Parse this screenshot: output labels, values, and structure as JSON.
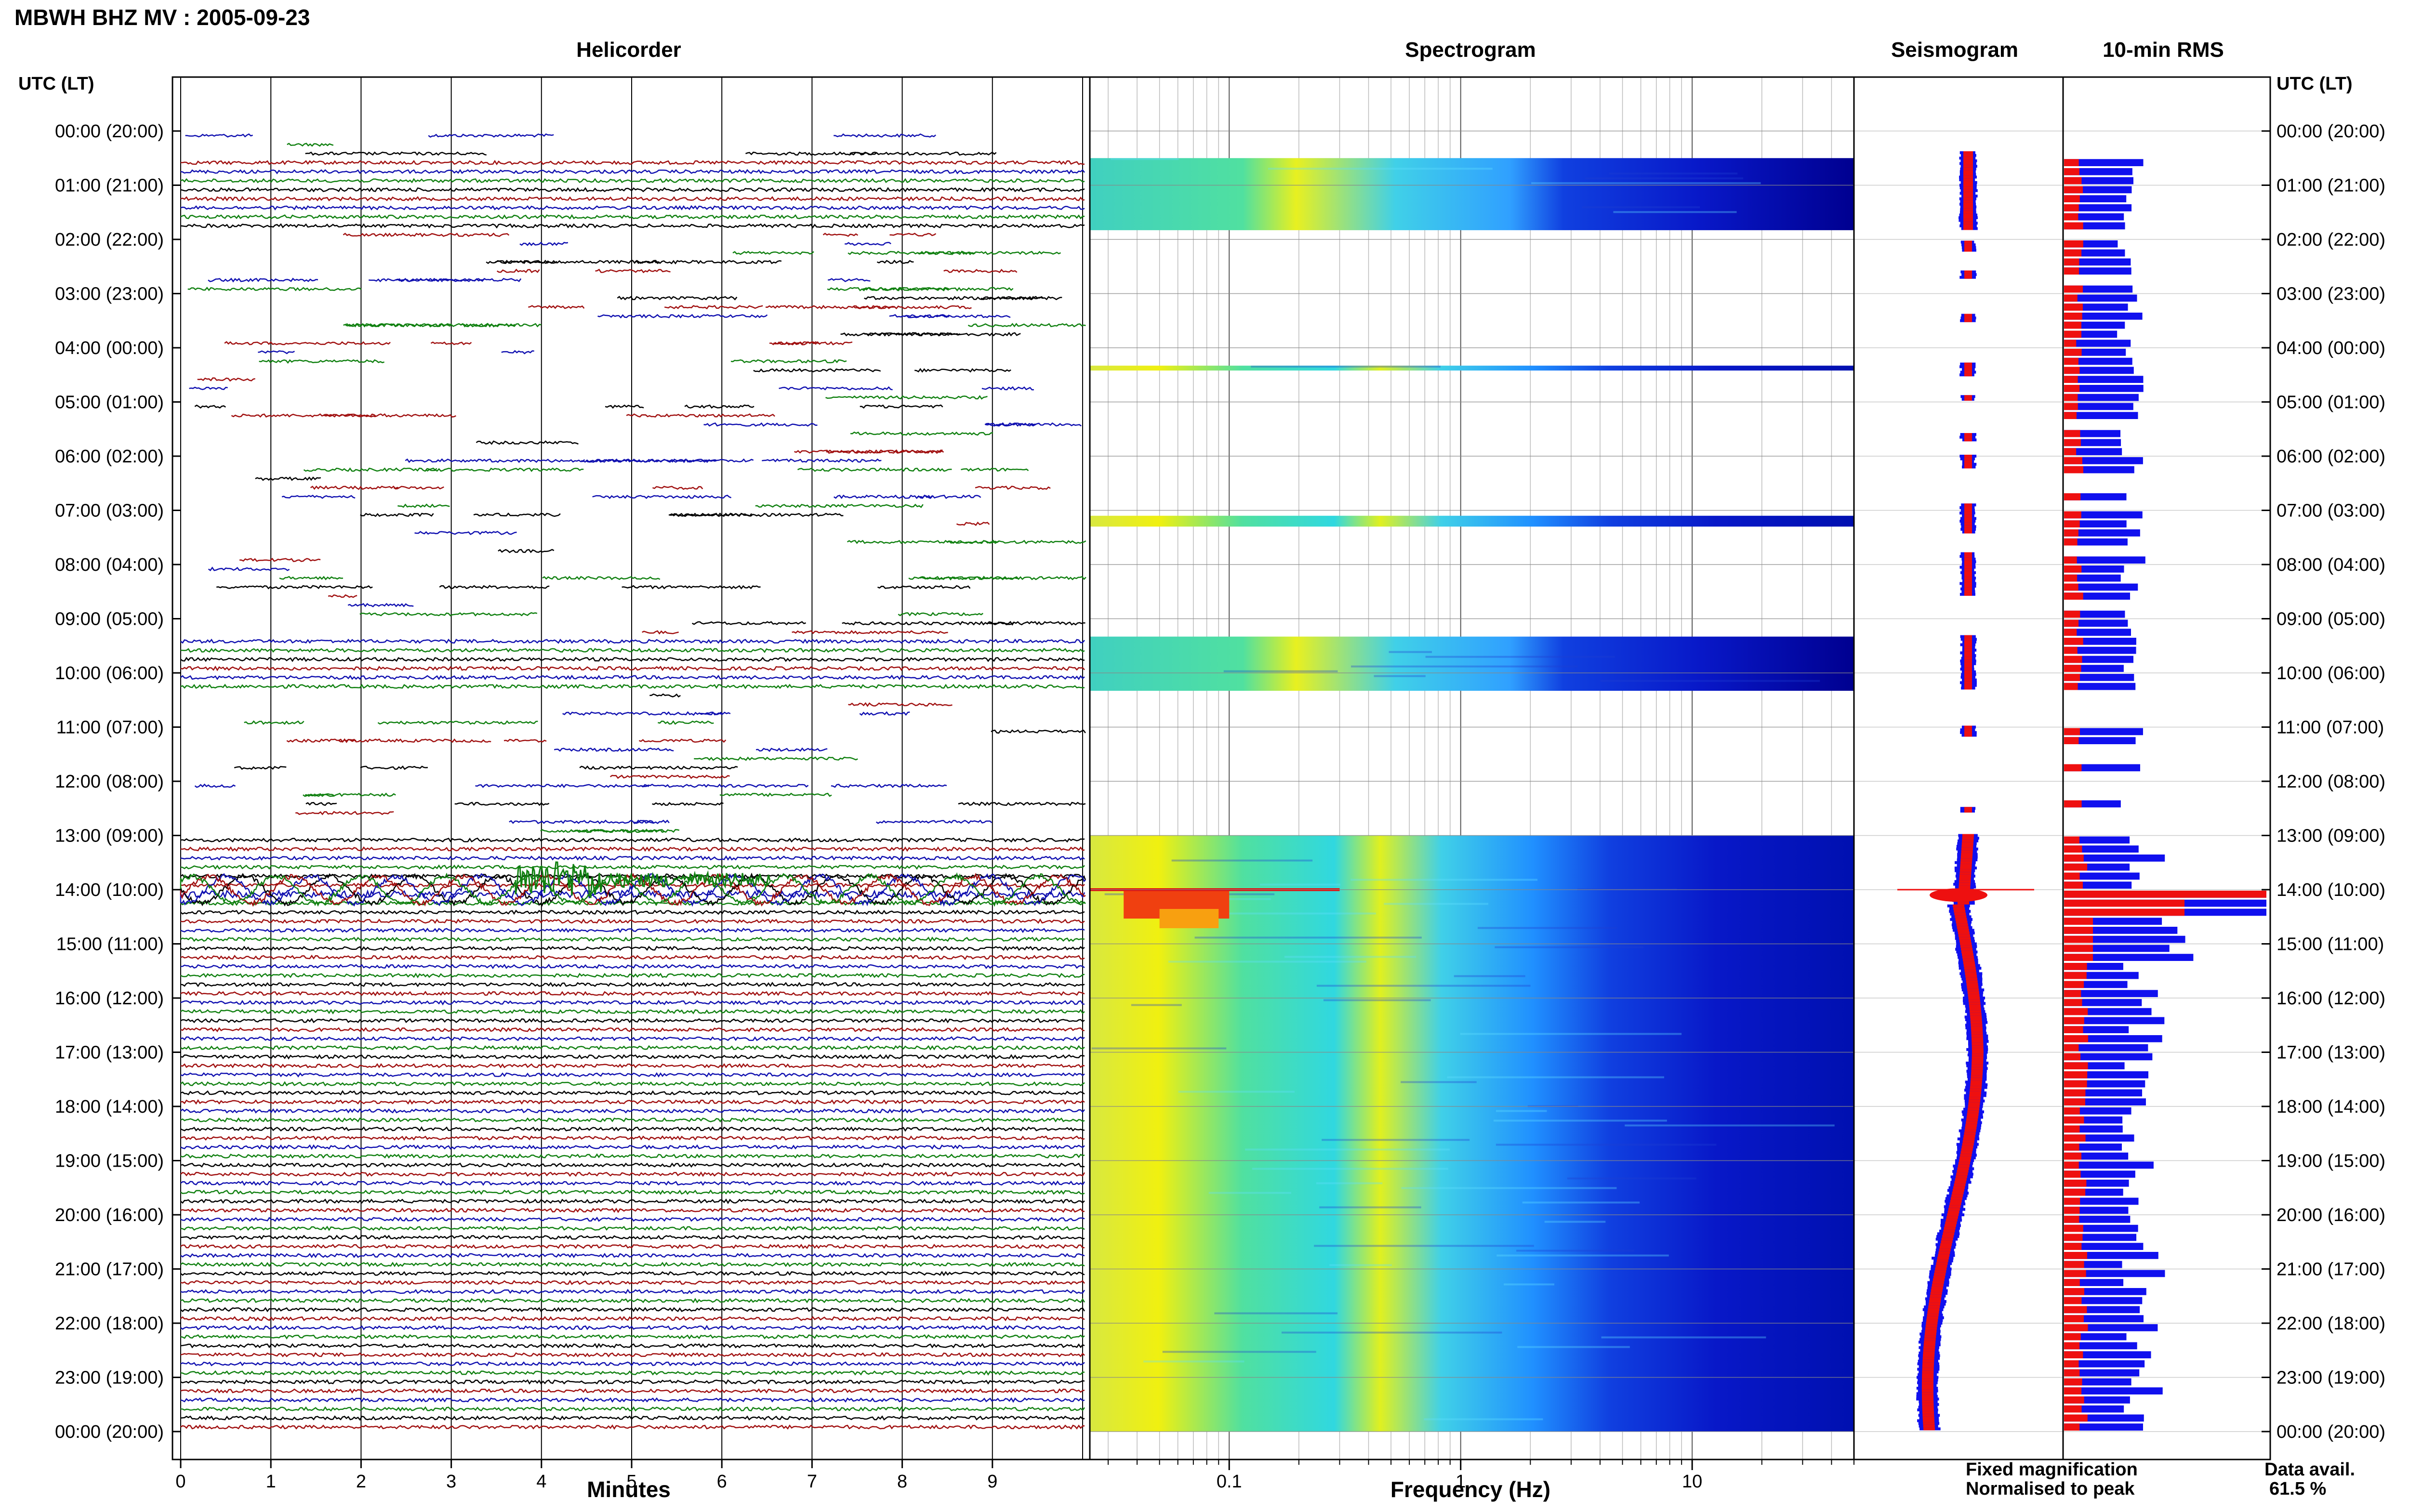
{
  "header": {
    "title": "MBWH BHZ MV : 2005-09-23"
  },
  "panels": {
    "helicorder": "Helicorder",
    "spectrogram": "Spectrogram",
    "seismogram": "Seismogram",
    "rms": "10-min RMS"
  },
  "axis_headers": {
    "left": "UTC (LT)",
    "right": "UTC (LT)"
  },
  "time_labels": [
    "00:00 (20:00)",
    "01:00 (21:00)",
    "02:00 (22:00)",
    "03:00 (23:00)",
    "04:00 (00:00)",
    "05:00 (01:00)",
    "06:00 (02:00)",
    "07:00 (03:00)",
    "08:00 (04:00)",
    "09:00 (05:00)",
    "10:00 (06:00)",
    "11:00 (07:00)",
    "12:00 (08:00)",
    "13:00 (09:00)",
    "14:00 (10:00)",
    "15:00 (11:00)",
    "16:00 (12:00)",
    "17:00 (13:00)",
    "18:00 (14:00)",
    "19:00 (15:00)",
    "20:00 (16:00)",
    "21:00 (17:00)",
    "22:00 (18:00)",
    "23:00 (19:00)",
    "00:00 (20:00)"
  ],
  "helicorder_axis": {
    "title": "Minutes",
    "ticks": [
      "0",
      "1",
      "2",
      "3",
      "4",
      "5",
      "6",
      "7",
      "8",
      "9"
    ]
  },
  "spectrogram_axis": {
    "title": "Frequency (Hz)",
    "ticks": [
      "0.1",
      "1",
      "10"
    ]
  },
  "legend": {
    "fixed": "Fixed magnification",
    "normalised": "Normalised to peak",
    "fixed_color": "#1010ee",
    "normalised_color": "#ee1010"
  },
  "data_availability": {
    "label": "Data avail.",
    "value": "61.5 %"
  },
  "chart_data": [
    {
      "type": "line",
      "name": "helicorder",
      "x_range_minutes": [
        0,
        10
      ],
      "rows_per_hour": 6,
      "trace_colors": [
        "#1010b0",
        "#108010",
        "#000000",
        "#a01010"
      ],
      "continuous_hours_utc": [
        [
          0.5,
          1.83
        ],
        [
          9.33,
          10.33
        ],
        [
          13.0,
          24.0
        ]
      ],
      "event_time_utc": "14:00"
    },
    {
      "type": "heatmap",
      "name": "spectrogram",
      "xscale": "log",
      "x_range_hz": [
        0.025,
        50
      ],
      "colormap": [
        "#00008f",
        "#0000ff",
        "#00ffff",
        "#ffff00",
        "#ff0000"
      ],
      "data_blocks_hours_utc": [
        [
          0.5,
          1.83
        ],
        [
          4.33,
          4.42
        ],
        [
          7.1,
          7.3
        ],
        [
          9.33,
          10.33
        ],
        [
          13.0,
          24.0
        ]
      ]
    },
    {
      "type": "line",
      "name": "seismogram",
      "series": [
        "Fixed magnification",
        "Normalised to peak"
      ]
    },
    {
      "type": "bar",
      "name": "10-min RMS",
      "orientation": "horizontal",
      "series": [
        "Fixed magnification",
        "Normalised to peak"
      ]
    }
  ]
}
